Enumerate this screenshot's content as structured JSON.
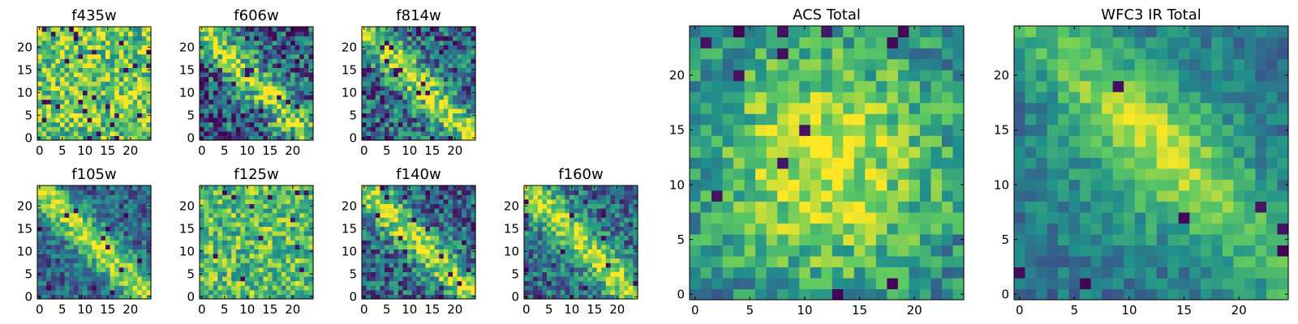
{
  "figure": {
    "colormap": "viridis",
    "grid_size": 25,
    "colors": {
      "viridis_stops": [
        "#440154",
        "#3b528b",
        "#21918c",
        "#5ec962",
        "#fde725"
      ],
      "frame": "#000000",
      "background": "#ffffff"
    }
  },
  "chart_data": [
    {
      "type": "heatmap",
      "title": "f435w",
      "xticks": [
        "0",
        "5",
        "10",
        "15",
        "20"
      ],
      "yticks": [
        "0",
        "5",
        "10",
        "15",
        "20"
      ],
      "xlim": [
        0,
        25
      ],
      "ylim": [
        0,
        25
      ],
      "pattern": "flat",
      "seed": 11,
      "mean": 0.78,
      "noise": 0.32,
      "dark_fraction": 0.04
    },
    {
      "type": "heatmap",
      "title": "f606w",
      "xticks": [
        "0",
        "5",
        "10",
        "15",
        "20"
      ],
      "yticks": [
        "0",
        "5",
        "10",
        "15",
        "20"
      ],
      "xlim": [
        0,
        25
      ],
      "ylim": [
        0,
        25
      ],
      "pattern": "diagonal",
      "seed": 23,
      "mean": 0.52,
      "noise": 0.34,
      "dark_fraction": 0.04
    },
    {
      "type": "heatmap",
      "title": "f814w",
      "xticks": [
        "0",
        "5",
        "10",
        "15",
        "20"
      ],
      "yticks": [
        "0",
        "5",
        "10",
        "15",
        "20"
      ],
      "xlim": [
        0,
        25
      ],
      "ylim": [
        0,
        25
      ],
      "pattern": "diagonal",
      "seed": 37,
      "mean": 0.55,
      "noise": 0.32,
      "dark_fraction": 0.04
    },
    {
      "type": "heatmap",
      "title": "f105w",
      "xticks": [
        "0",
        "5",
        "10",
        "15",
        "20"
      ],
      "yticks": [
        "0",
        "5",
        "10",
        "15",
        "20"
      ],
      "xlim": [
        0,
        25
      ],
      "ylim": [
        0,
        25
      ],
      "pattern": "diagonal",
      "seed": 41,
      "mean": 0.55,
      "noise": 0.22,
      "dark_fraction": 0.02
    },
    {
      "type": "heatmap",
      "title": "f125w",
      "xticks": [
        "0",
        "5",
        "10",
        "15",
        "20"
      ],
      "yticks": [
        "0",
        "5",
        "10",
        "15",
        "20"
      ],
      "xlim": [
        0,
        25
      ],
      "ylim": [
        0,
        25
      ],
      "pattern": "flat",
      "seed": 53,
      "mean": 0.7,
      "noise": 0.28,
      "dark_fraction": 0.02
    },
    {
      "type": "heatmap",
      "title": "f140w",
      "xticks": [
        "0",
        "5",
        "10",
        "15",
        "20"
      ],
      "yticks": [
        "0",
        "5",
        "10",
        "15",
        "20"
      ],
      "xlim": [
        0,
        25
      ],
      "ylim": [
        0,
        25
      ],
      "pattern": "diagonal",
      "seed": 67,
      "mean": 0.55,
      "noise": 0.28,
      "dark_fraction": 0.03
    },
    {
      "type": "heatmap",
      "title": "f160w",
      "xticks": [
        "0",
        "5",
        "10",
        "15",
        "20"
      ],
      "yticks": [
        "0",
        "5",
        "10",
        "15",
        "20"
      ],
      "xlim": [
        0,
        25
      ],
      "ylim": [
        0,
        25
      ],
      "pattern": "diagonal",
      "seed": 79,
      "mean": 0.6,
      "noise": 0.26,
      "dark_fraction": 0.03
    },
    {
      "type": "heatmap",
      "title": "ACS Total",
      "xticks": [
        "0",
        "5",
        "10",
        "15",
        "20"
      ],
      "yticks": [
        "0",
        "5",
        "10",
        "15",
        "20"
      ],
      "xlim": [
        0,
        25
      ],
      "ylim": [
        0,
        25
      ],
      "pattern": "center",
      "seed": 97,
      "mean": 0.62,
      "noise": 0.22,
      "dark_fraction": 0.03
    },
    {
      "type": "heatmap",
      "title": "WFC3 IR Total",
      "xticks": [
        "0",
        "5",
        "10",
        "15",
        "20"
      ],
      "yticks": [
        "0",
        "5",
        "10",
        "15",
        "20"
      ],
      "xlim": [
        0,
        25
      ],
      "ylim": [
        0,
        25
      ],
      "pattern": "smooth-diagonal",
      "seed": 113,
      "mean": 0.58,
      "noise": 0.14,
      "dark_fraction": 0.015
    }
  ]
}
